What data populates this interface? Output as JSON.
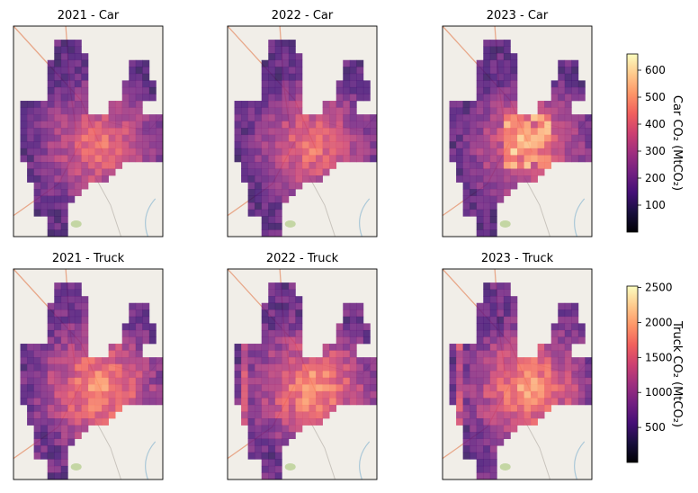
{
  "colormap": [
    "#000004",
    "#180f3d",
    "#440f76",
    "#721f81",
    "#9e2f7f",
    "#cd4071",
    "#f1605d",
    "#fd9668",
    "#feca8d",
    "#fcfdbf"
  ],
  "basemap_colors": {
    "land": "#f1eee8",
    "road": "#e8a88a",
    "minor_road": "#c9c4bd",
    "water": "#aac8d8",
    "park": "#c4d6a4"
  },
  "chart_data": [
    {
      "type": "heatmap",
      "title": "2021 - Car",
      "mode": "car",
      "year": 2021,
      "colorbar_group": "car"
    },
    {
      "type": "heatmap",
      "title": "2022 - Car",
      "mode": "car",
      "year": 2022,
      "colorbar_group": "car"
    },
    {
      "type": "heatmap",
      "title": "2023 - Car",
      "mode": "car",
      "year": 2023,
      "colorbar_group": "car"
    },
    {
      "type": "heatmap",
      "title": "2021 - Truck",
      "mode": "truck",
      "year": 2021,
      "colorbar_group": "truck"
    },
    {
      "type": "heatmap",
      "title": "2022 - Truck",
      "mode": "truck",
      "year": 2022,
      "colorbar_group": "truck"
    },
    {
      "type": "heatmap",
      "title": "2023 - Truck",
      "mode": "truck",
      "year": 2023,
      "colorbar_group": "truck"
    }
  ],
  "colorbars": {
    "car": {
      "label": "Car CO₂ (MtCO₂)",
      "range": [
        0,
        660
      ],
      "ticks": [
        100,
        200,
        300,
        400,
        500,
        600
      ]
    },
    "truck": {
      "label": "Truck CO₂ (MtCO₂)",
      "range": [
        0,
        2520
      ],
      "ticks": [
        500,
        1000,
        1500,
        2000,
        2500
      ]
    }
  }
}
